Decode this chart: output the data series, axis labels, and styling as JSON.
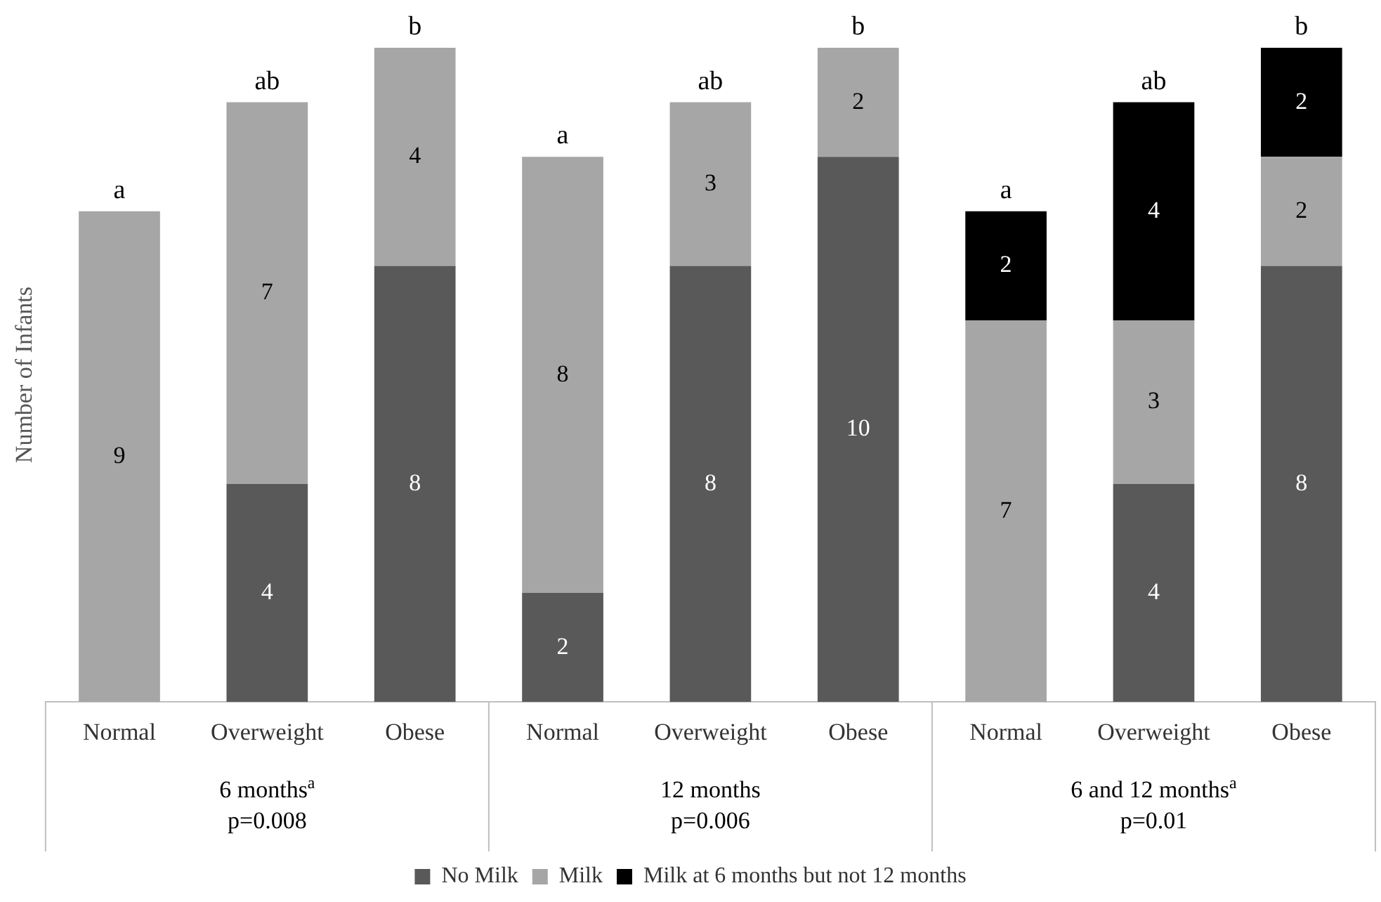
{
  "chart_data": {
    "type": "bar",
    "stacked": true,
    "ylabel": "Number of Infants",
    "categories": [
      "Normal",
      "Overweight",
      "Obese",
      "Normal",
      "Overweight",
      "Obese",
      "Normal",
      "Overweight",
      "Obese"
    ],
    "series": [
      {
        "name": "No Milk",
        "color": "#595959",
        "values": [
          null,
          4,
          8,
          2,
          8,
          10,
          null,
          4,
          8
        ]
      },
      {
        "name": "Milk",
        "color": "#a6a6a6",
        "values": [
          9,
          7,
          4,
          8,
          3,
          2,
          7,
          3,
          2
        ]
      },
      {
        "name": "Milk at 6 months but not 12 months",
        "color": "#000000",
        "values": [
          null,
          null,
          null,
          null,
          null,
          null,
          2,
          4,
          2
        ]
      }
    ],
    "ylim": [
      0,
      12
    ],
    "tick_labels": "x",
    "data_labels": true,
    "legend": "bottom",
    "grid": false,
    "annotations": [
      "a",
      "ab",
      "b",
      "a",
      "ab",
      "b",
      "a",
      "ab",
      "b",
      "6 months$^{a}$\np=0.008",
      "12 months\np=0.006",
      "6 and 12 months$^{a}$\np=0.01"
    ]
  }
}
